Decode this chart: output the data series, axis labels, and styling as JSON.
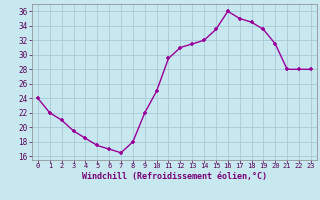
{
  "x": [
    0,
    1,
    2,
    3,
    4,
    5,
    6,
    7,
    8,
    9,
    10,
    11,
    12,
    13,
    14,
    15,
    16,
    17,
    18,
    19,
    20,
    21,
    22,
    23
  ],
  "y": [
    24,
    22,
    21,
    19.5,
    18.5,
    17.5,
    17,
    16.5,
    18,
    22,
    25,
    29.5,
    31,
    31.5,
    32,
    33.5,
    36,
    35,
    34.5,
    33.5,
    31.5,
    28,
    28,
    28
  ],
  "line_color": "#990099",
  "marker": "+",
  "bg_color": "#c8e8f0",
  "grid_color": "#a8c8d8",
  "xlabel": "Windchill (Refroidissement éolien,°C)",
  "ylim": [
    15.5,
    37
  ],
  "yticks": [
    16,
    18,
    20,
    22,
    24,
    26,
    28,
    30,
    32,
    34,
    36
  ],
  "xticks": [
    0,
    1,
    2,
    3,
    4,
    5,
    6,
    7,
    8,
    9,
    10,
    11,
    12,
    13,
    14,
    15,
    16,
    17,
    18,
    19,
    20,
    21,
    22,
    23
  ],
  "xlim": [
    -0.5,
    23.5
  ],
  "label_color": "#770077",
  "tick_color": "#550055"
}
